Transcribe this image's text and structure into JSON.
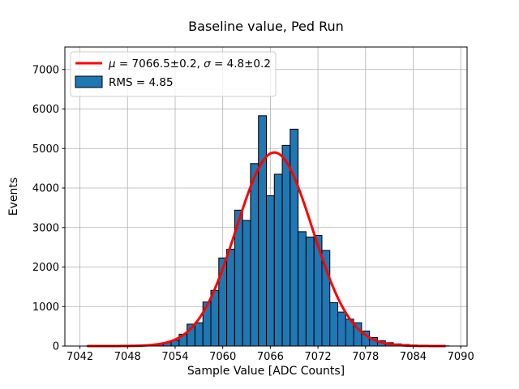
{
  "chart_data": {
    "type": "bar",
    "subtype": "histogram-with-gaussian-fit",
    "title": "Baseline value, Ped Run",
    "xlabel": "Sample Value [ADC Counts]",
    "ylabel": "Events",
    "xlim": [
      7040.1,
      7090.8
    ],
    "ylim": [
      0,
      7570
    ],
    "xticks": [
      7042,
      7048,
      7054,
      7060,
      7066,
      7072,
      7078,
      7084,
      7090
    ],
    "yticks": [
      0,
      1000,
      2000,
      3000,
      4000,
      5000,
      6000,
      7000
    ],
    "grid": true,
    "grid_color": "#b0b0b0",
    "bar_color": "#1f77b4",
    "bar_edge_color": "#000000",
    "fit_color": "#ff0000",
    "bin_width": 1,
    "categories": [
      7046,
      7047,
      7048,
      7049,
      7050,
      7051,
      7052,
      7053,
      7054,
      7055,
      7056,
      7057,
      7058,
      7059,
      7060,
      7061,
      7062,
      7063,
      7064,
      7065,
      7066,
      7067,
      7068,
      7069,
      7070,
      7071,
      7072,
      7073,
      7074,
      7075,
      7076,
      7077,
      7078,
      7079,
      7080,
      7081,
      7082,
      7083,
      7084,
      7085,
      7086,
      7087,
      7088
    ],
    "values": [
      2,
      3,
      5,
      10,
      20,
      30,
      45,
      92,
      145,
      300,
      555,
      590,
      1115,
      1410,
      2230,
      2450,
      3440,
      3180,
      4620,
      5830,
      3805,
      4350,
      5080,
      5490,
      2895,
      2760,
      2800,
      2420,
      1100,
      860,
      680,
      590,
      380,
      215,
      135,
      85,
      55,
      40,
      25,
      15,
      12,
      8,
      5
    ],
    "fit": {
      "shape": "gaussian",
      "amplitude": 4900,
      "mu": 7066.5,
      "sigma": 4.8,
      "x_range": [
        7043,
        7088
      ]
    },
    "legend": {
      "position": "upper left",
      "entries": [
        {
          "marker": "line",
          "color": "#ff0000",
          "label": "μ = 7066.5±0.2, σ = 4.8±0.2"
        },
        {
          "marker": "patch",
          "color": "#1f77b4",
          "label": "RMS = 4.85"
        }
      ]
    }
  }
}
